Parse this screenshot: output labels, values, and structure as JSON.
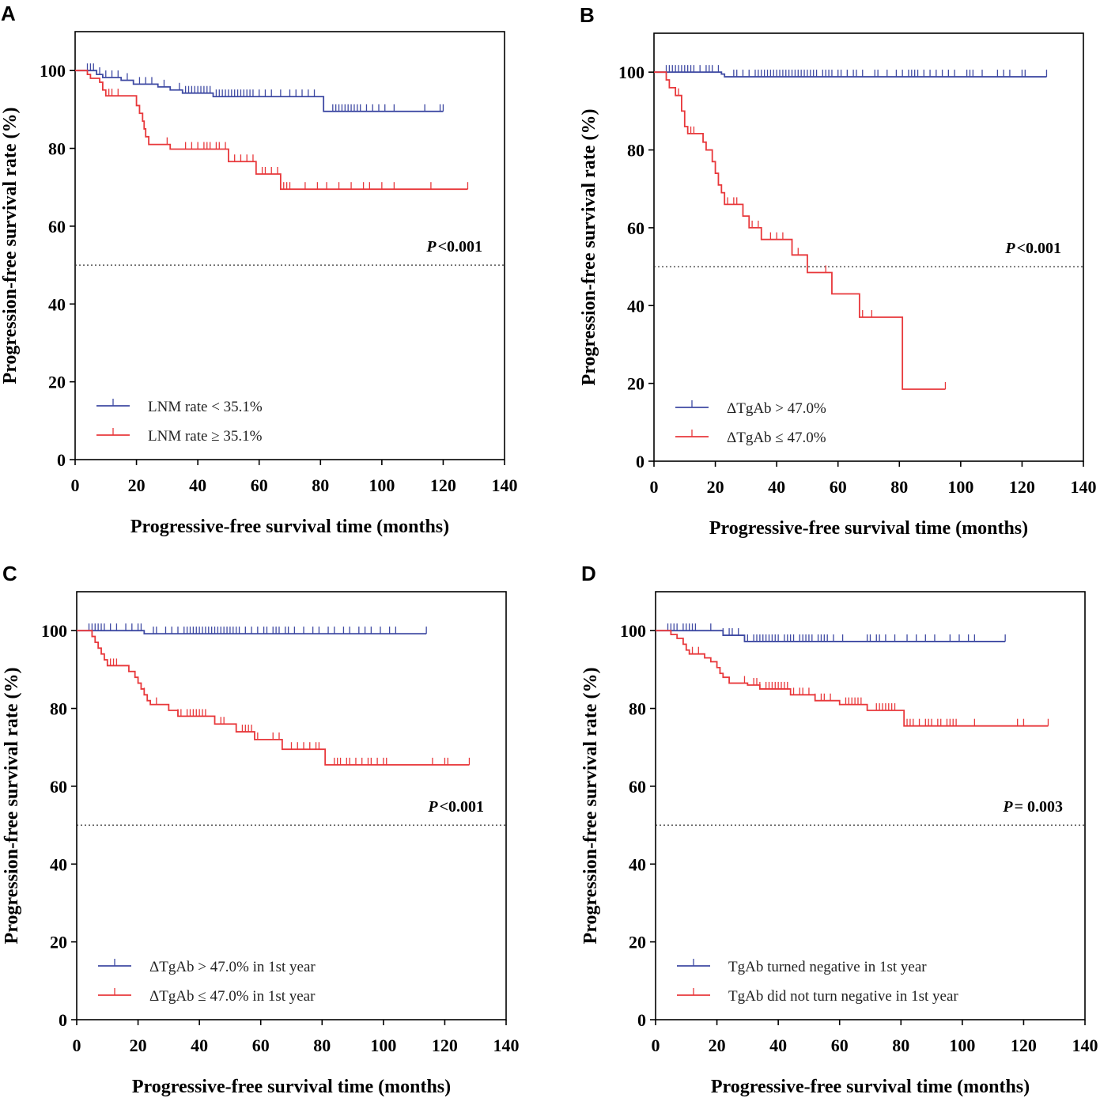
{
  "chart_data": [
    {
      "panel": "A",
      "type": "line",
      "subtype": "kaplan-meier",
      "title": "",
      "xlabel": "Progressive-free survival time (months)",
      "ylabel": "Progression-free survival rate (%)",
      "xlim": [
        0,
        140
      ],
      "ylim": [
        0,
        110
      ],
      "xticks": [
        0,
        20,
        40,
        60,
        80,
        100,
        120,
        140
      ],
      "yticks": [
        0,
        20,
        40,
        60,
        80,
        100
      ],
      "reference_line": 50,
      "p_label": "P",
      "p_value_text": "<0.001",
      "legend_position": "bottom-left",
      "series": [
        {
          "name": "LNM rate < 35.1%",
          "color": "#3f4aa3",
          "steps": [
            [
              0,
              100
            ],
            [
              7,
              99
            ],
            [
              9,
              98.2
            ],
            [
              15,
              97.5
            ],
            [
              19,
              96.5
            ],
            [
              27,
              95.8
            ],
            [
              31,
              95
            ],
            [
              35,
              94.2
            ],
            [
              45,
              93.3
            ],
            [
              81,
              89.5
            ],
            [
              120,
              89.5
            ]
          ],
          "censors": [
            4,
            5,
            6,
            8,
            10,
            12,
            14,
            17,
            21,
            23,
            25,
            29,
            34,
            36,
            37,
            38,
            39,
            40,
            41,
            42,
            43,
            44,
            46,
            47,
            48,
            49,
            50,
            51,
            52,
            53,
            54,
            55,
            56,
            57,
            58,
            60,
            62,
            64,
            67,
            70,
            72,
            74,
            76,
            78,
            84,
            85,
            86,
            87,
            88,
            89,
            90,
            91,
            92,
            93,
            95,
            97,
            99,
            101,
            104,
            114,
            119,
            120
          ]
        },
        {
          "name": "LNM rate ≥ 35.1%",
          "color": "#e8383b",
          "steps": [
            [
              0,
              100
            ],
            [
              4,
              99
            ],
            [
              5,
              98
            ],
            [
              8,
              97
            ],
            [
              9,
              95
            ],
            [
              10,
              93.5
            ],
            [
              20,
              91
            ],
            [
              21,
              89
            ],
            [
              22,
              87
            ],
            [
              22.5,
              85
            ],
            [
              23,
              83
            ],
            [
              24,
              81
            ],
            [
              31,
              79.8
            ],
            [
              50,
              76.6
            ],
            [
              59,
              73.4
            ],
            [
              67,
              69.5
            ],
            [
              128,
              69.5
            ]
          ],
          "censors": [
            11,
            12,
            14,
            30,
            36,
            38,
            40,
            42,
            43,
            44,
            46,
            47,
            49,
            52,
            54,
            56,
            58,
            61,
            62,
            64,
            66,
            68,
            69,
            70,
            75,
            79,
            82,
            86,
            90,
            94,
            96,
            100,
            104,
            116,
            128
          ]
        }
      ]
    },
    {
      "panel": "B",
      "type": "line",
      "subtype": "kaplan-meier",
      "title": "",
      "xlabel": "Progressive-free survival time (months)",
      "ylabel": "Progression-free survival rate (%)",
      "xlim": [
        0,
        140
      ],
      "ylim": [
        0,
        110
      ],
      "xticks": [
        0,
        20,
        40,
        60,
        80,
        100,
        120,
        140
      ],
      "yticks": [
        0,
        20,
        40,
        60,
        80,
        100
      ],
      "reference_line": 50,
      "p_label": "P",
      "p_value_text": "<0.001",
      "legend_position": "bottom-left",
      "series": [
        {
          "name": "ΔTgAb > 47.0%",
          "color": "#3f4aa3",
          "steps": [
            [
              0,
              100
            ],
            [
              22,
              99.5
            ],
            [
              23,
              98.8
            ],
            [
              128,
              98.8
            ]
          ],
          "censors": [
            4,
            5,
            6,
            7,
            8,
            9,
            10,
            11,
            12,
            13,
            15,
            17,
            18,
            19,
            21,
            26,
            27,
            29,
            31,
            33,
            34,
            35,
            36,
            37,
            38,
            39,
            40,
            41,
            42,
            43,
            44,
            45,
            46,
            47,
            48,
            49,
            50,
            51,
            52,
            53,
            55,
            56,
            57,
            58,
            60,
            61,
            63,
            65,
            66,
            68,
            72,
            73,
            76,
            79,
            81,
            83,
            84,
            85,
            86,
            88,
            90,
            92,
            94,
            96,
            98,
            102,
            103,
            104,
            107,
            112,
            114,
            116,
            120,
            121,
            128
          ]
        },
        {
          "name": "ΔTgAb ≤ 47.0%",
          "color": "#e8383b",
          "steps": [
            [
              0,
              100
            ],
            [
              4,
              98
            ],
            [
              5,
              96
            ],
            [
              7,
              94
            ],
            [
              9,
              90
            ],
            [
              10,
              86
            ],
            [
              11,
              84.2
            ],
            [
              16,
              82
            ],
            [
              17,
              80
            ],
            [
              19,
              77
            ],
            [
              20,
              74
            ],
            [
              21,
              71
            ],
            [
              22,
              69
            ],
            [
              23,
              66
            ],
            [
              29,
              63
            ],
            [
              31,
              60
            ],
            [
              35,
              57
            ],
            [
              45,
              53
            ],
            [
              50,
              48.5
            ],
            [
              58,
              43
            ],
            [
              67,
              37
            ],
            [
              81,
              18.5
            ],
            [
              95,
              18.5
            ]
          ],
          "censors": [
            8,
            12,
            13,
            24,
            26,
            27,
            32,
            34,
            38,
            40,
            42,
            47,
            56,
            68,
            71,
            95
          ]
        }
      ]
    },
    {
      "panel": "C",
      "type": "line",
      "subtype": "kaplan-meier",
      "title": "",
      "xlabel": "Progressive-free survival time (months)",
      "ylabel": "Progression-free survival rate (%)",
      "xlim": [
        0,
        140
      ],
      "ylim": [
        0,
        110
      ],
      "xticks": [
        0,
        20,
        40,
        60,
        80,
        100,
        120,
        140
      ],
      "yticks": [
        0,
        20,
        40,
        60,
        80,
        100
      ],
      "reference_line": 50,
      "p_label": "P",
      "p_value_text": "<0.001",
      "legend_position": "bottom-left",
      "series": [
        {
          "name": "ΔTgAb > 47.0% in 1st year",
          "color": "#3f4aa3",
          "steps": [
            [
              0,
              100
            ],
            [
              22,
              99.2
            ],
            [
              114,
              99.2
            ]
          ],
          "censors": [
            4,
            5,
            6,
            7,
            8,
            9,
            11,
            13,
            16,
            18,
            20,
            21,
            25,
            26,
            29,
            31,
            33,
            35,
            36,
            37,
            38,
            39,
            40,
            41,
            42,
            43,
            44,
            45,
            46,
            47,
            48,
            49,
            50,
            51,
            52,
            53,
            55,
            57,
            59,
            61,
            62,
            64,
            65,
            66,
            68,
            69,
            71,
            74,
            77,
            79,
            82,
            84,
            87,
            89,
            92,
            94,
            96,
            99,
            102,
            104,
            114
          ]
        },
        {
          "name": "ΔTgAb ≤ 47.0% in 1st year",
          "color": "#e8383b",
          "steps": [
            [
              0,
              100
            ],
            [
              5,
              98.5
            ],
            [
              6,
              97
            ],
            [
              7,
              95.5
            ],
            [
              8,
              94
            ],
            [
              9,
              92.5
            ],
            [
              10,
              91
            ],
            [
              17,
              89.5
            ],
            [
              19,
              88
            ],
            [
              20,
              86.5
            ],
            [
              21,
              85
            ],
            [
              22,
              83.5
            ],
            [
              23,
              82
            ],
            [
              24,
              81
            ],
            [
              30,
              79.5
            ],
            [
              33,
              78
            ],
            [
              45,
              76
            ],
            [
              52,
              74
            ],
            [
              58,
              72
            ],
            [
              67,
              69.5
            ],
            [
              81,
              65.5
            ],
            [
              128,
              65.5
            ]
          ],
          "censors": [
            11,
            12,
            13,
            22,
            26,
            33,
            34,
            36,
            37,
            38,
            39,
            40,
            41,
            42,
            47,
            48,
            54,
            55,
            56,
            57,
            59,
            64,
            66,
            70,
            72,
            74,
            76,
            78,
            79,
            84,
            85,
            86,
            88,
            89,
            91,
            93,
            95,
            96,
            98,
            100,
            101,
            116,
            120,
            121,
            128
          ]
        }
      ]
    },
    {
      "panel": "D",
      "type": "line",
      "subtype": "kaplan-meier",
      "title": "",
      "xlabel": "Progressive-free survival time (months)",
      "ylabel": "Progression-free survival rate (%)",
      "xlim": [
        0,
        140
      ],
      "ylim": [
        0,
        110
      ],
      "xticks": [
        0,
        20,
        40,
        60,
        80,
        100,
        120,
        140
      ],
      "yticks": [
        0,
        20,
        40,
        60,
        80,
        100
      ],
      "reference_line": 50,
      "p_label": "P",
      "p_value_text": "= 0.003",
      "legend_position": "bottom-left",
      "series": [
        {
          "name": "TgAb turned negative in 1st year",
          "color": "#3f4aa3",
          "steps": [
            [
              0,
              100
            ],
            [
              22,
              98.8
            ],
            [
              29,
              97.2
            ],
            [
              114,
              97.2
            ]
          ],
          "censors": [
            4,
            5,
            6,
            7,
            9,
            10,
            11,
            12,
            13,
            18,
            22,
            24,
            25,
            27,
            30,
            32,
            33,
            34,
            35,
            36,
            37,
            38,
            39,
            40,
            42,
            43,
            44,
            45,
            47,
            48,
            49,
            50,
            51,
            53,
            54,
            55,
            56,
            58,
            61,
            69,
            70,
            72,
            73,
            75,
            78,
            82,
            85,
            88,
            91,
            96,
            99,
            102,
            104,
            114
          ]
        },
        {
          "name": "TgAb did not turn negative in 1st year",
          "color": "#e8383b",
          "steps": [
            [
              0,
              100
            ],
            [
              5,
              99
            ],
            [
              7,
              98
            ],
            [
              9,
              96.5
            ],
            [
              10,
              95
            ],
            [
              11,
              94
            ],
            [
              16,
              93
            ],
            [
              18,
              92
            ],
            [
              20,
              90.5
            ],
            [
              21,
              89
            ],
            [
              22,
              88
            ],
            [
              24,
              86.5
            ],
            [
              30,
              86
            ],
            [
              34,
              85
            ],
            [
              44,
              83.5
            ],
            [
              52,
              82
            ],
            [
              60,
              81
            ],
            [
              69,
              79.5
            ],
            [
              81,
              75.5
            ],
            [
              128,
              75.5
            ]
          ],
          "censors": [
            12,
            14,
            29,
            32,
            33,
            34,
            36,
            37,
            38,
            39,
            40,
            41,
            42,
            43,
            45,
            47,
            48,
            50,
            52,
            54,
            55,
            57,
            62,
            63,
            64,
            65,
            66,
            67,
            72,
            73,
            74,
            75,
            76,
            77,
            78,
            82,
            83,
            84,
            86,
            88,
            89,
            90,
            92,
            93,
            95,
            96,
            97,
            98,
            104,
            118,
            120,
            128
          ]
        }
      ]
    }
  ]
}
